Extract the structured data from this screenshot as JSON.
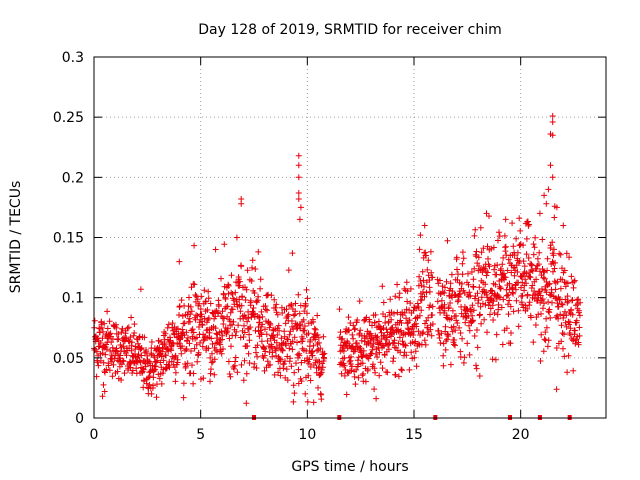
{
  "chart_data": {
    "type": "scatter",
    "title": "Day 128 of 2019, SRMTID for receiver chim",
    "xlabel": "GPS time / hours",
    "ylabel": "SRMTID / TECUs",
    "xlim": [
      0,
      24
    ],
    "ylim": [
      0,
      0.3
    ],
    "x_ticks": [
      0,
      5,
      10,
      15,
      20
    ],
    "y_ticks": [
      0,
      0.05,
      0.1,
      0.15,
      0.2,
      0.25,
      0.3
    ],
    "x_tick_labels": [
      "0",
      "5",
      "10",
      "15",
      "20"
    ],
    "y_tick_labels": [
      "0",
      "0.05",
      "0.1",
      "0.15",
      "0.2",
      "0.25",
      "0.3"
    ],
    "grid": true,
    "marker": "+",
    "colors": {
      "series": "#e8000b",
      "grid": "#a0a0a0",
      "axis": "#000000"
    },
    "point_count_note": "dense scatter, ~1,900 points generated from band profile",
    "band_profile": {
      "x": [
        0.0,
        0.5,
        1.0,
        1.5,
        2.0,
        2.5,
        3.0,
        3.5,
        4.0,
        4.5,
        5.0,
        5.5,
        6.0,
        6.5,
        7.0,
        7.5,
        8.0,
        8.5,
        9.0,
        9.5,
        10.0,
        10.5,
        11.0,
        11.5,
        12.0,
        12.5,
        13.0,
        13.5,
        14.0,
        14.5,
        15.0,
        15.5,
        16.0,
        16.5,
        17.0,
        17.5,
        18.0,
        18.5,
        19.0,
        19.5,
        20.0,
        20.5,
        21.0,
        21.5,
        22.0,
        22.5
      ],
      "center": [
        0.062,
        0.063,
        0.058,
        0.055,
        0.052,
        0.04,
        0.045,
        0.06,
        0.068,
        0.074,
        0.076,
        0.07,
        0.078,
        0.085,
        0.082,
        0.078,
        0.072,
        0.065,
        0.063,
        0.06,
        0.065,
        0.05,
        null,
        null,
        0.058,
        0.062,
        0.06,
        0.065,
        0.068,
        0.07,
        0.075,
        0.1,
        null,
        0.088,
        0.092,
        0.09,
        0.11,
        0.115,
        0.108,
        0.105,
        0.125,
        0.12,
        0.1,
        0.11,
        0.09,
        0.085
      ],
      "spread": [
        0.018,
        0.018,
        0.016,
        0.016,
        0.016,
        0.014,
        0.016,
        0.02,
        0.022,
        0.024,
        0.024,
        0.022,
        0.026,
        0.03,
        0.028,
        0.026,
        0.024,
        0.024,
        0.026,
        0.03,
        0.026,
        0.018,
        null,
        null,
        0.018,
        0.02,
        0.02,
        0.022,
        0.022,
        0.022,
        0.024,
        0.03,
        null,
        0.028,
        0.03,
        0.03,
        0.03,
        0.03,
        0.03,
        0.032,
        0.032,
        0.032,
        0.03,
        0.034,
        0.03,
        0.025
      ]
    },
    "gaps_hours": [
      [
        10.8,
        11.5
      ],
      [
        15.9,
        16.1
      ]
    ],
    "outliers": [
      {
        "x": 6.9,
        "y": 0.182
      },
      {
        "x": 6.9,
        "y": 0.178
      },
      {
        "x": 9.6,
        "y": 0.218
      },
      {
        "x": 9.6,
        "y": 0.21
      },
      {
        "x": 9.6,
        "y": 0.2
      },
      {
        "x": 9.6,
        "y": 0.187
      },
      {
        "x": 9.6,
        "y": 0.182
      },
      {
        "x": 9.7,
        "y": 0.175
      },
      {
        "x": 9.65,
        "y": 0.165
      },
      {
        "x": 21.5,
        "y": 0.251
      },
      {
        "x": 21.5,
        "y": 0.246
      },
      {
        "x": 21.4,
        "y": 0.236
      },
      {
        "x": 21.5,
        "y": 0.235
      },
      {
        "x": 21.4,
        "y": 0.21
      },
      {
        "x": 21.5,
        "y": 0.2
      },
      {
        "x": 21.3,
        "y": 0.19
      },
      {
        "x": 21.6,
        "y": 0.176
      },
      {
        "x": 21.7,
        "y": 0.175
      },
      {
        "x": 21.1,
        "y": 0.185
      },
      {
        "x": 21.2,
        "y": 0.178
      },
      {
        "x": 18.4,
        "y": 0.17
      },
      {
        "x": 19.3,
        "y": 0.165
      },
      {
        "x": 19.6,
        "y": 0.162
      },
      {
        "x": 20.3,
        "y": 0.163
      },
      {
        "x": 20.9,
        "y": 0.17
      },
      {
        "x": 22.0,
        "y": 0.16
      },
      {
        "x": 15.5,
        "y": 0.16
      },
      {
        "x": 15.3,
        "y": 0.152
      },
      {
        "x": 4.0,
        "y": 0.13
      },
      {
        "x": 5.7,
        "y": 0.14
      },
      {
        "x": 6.7,
        "y": 0.15
      },
      {
        "x": 7.7,
        "y": 0.138
      },
      {
        "x": 9.3,
        "y": 0.137
      },
      {
        "x": 2.2,
        "y": 0.107
      }
    ],
    "low_points": [
      {
        "x": 10.3,
        "y": 0.013
      },
      {
        "x": 0.4,
        "y": 0.018
      },
      {
        "x": 0.5,
        "y": 0.022
      },
      {
        "x": 2.7,
        "y": 0.02
      },
      {
        "x": 9.9,
        "y": 0.02
      },
      {
        "x": 10.5,
        "y": 0.025
      }
    ],
    "axis_markers": [
      {
        "x": 7.5,
        "y": 0
      },
      {
        "x": 11.5,
        "y": 0
      },
      {
        "x": 16.0,
        "y": 0
      },
      {
        "x": 19.5,
        "y": 0
      },
      {
        "x": 20.9,
        "y": 0
      },
      {
        "x": 22.3,
        "y": 0
      }
    ]
  }
}
